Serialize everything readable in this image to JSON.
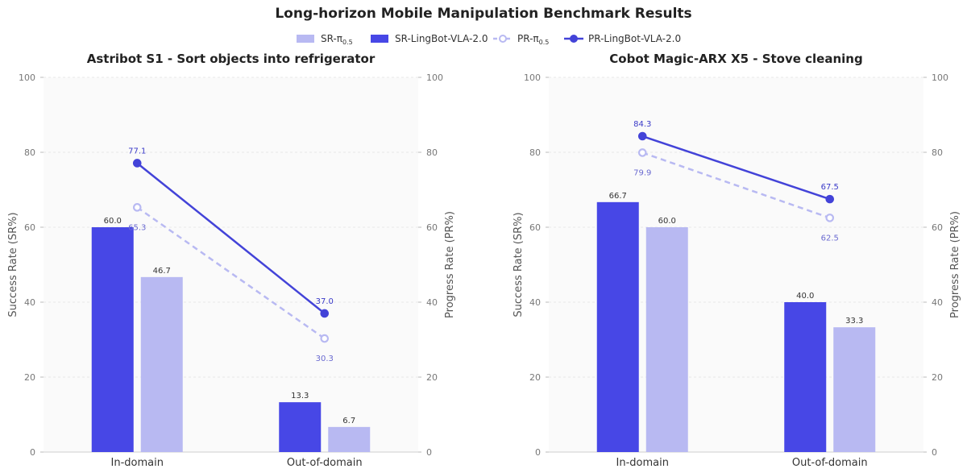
{
  "title": "Long-horizon Mobile Manipulation Benchmark Results",
  "colors": {
    "sr_pi": "#b8b9f2",
    "sr_lingbot": "#4747e6",
    "pr_pi": "#b8b9f2",
    "pr_lingbot": "#4343d8",
    "pr_pi_label": "#6a6ad0",
    "pr_lingbot_label": "#3a3ac8"
  },
  "legend": [
    {
      "key": "sr_pi",
      "label": "SR-π",
      "sub": "0.5",
      "kind": "bar"
    },
    {
      "key": "sr_lingbot",
      "label": "SR-LingBot-VLA-2.0",
      "sub": "",
      "kind": "bar"
    },
    {
      "key": "pr_pi",
      "label": "PR-π",
      "sub": "0.5",
      "kind": "line-dashed"
    },
    {
      "key": "pr_lingbot",
      "label": "PR-LingBot-VLA-2.0",
      "sub": "",
      "kind": "line"
    }
  ],
  "chart_data": [
    {
      "type": "bar",
      "title": "Astribot S1 - Sort objects into refrigerator",
      "categories": [
        "In-domain",
        "Out-of-domain"
      ],
      "ylabel": "Success Rate (SR%)",
      "y2label": "Progress Rate (PR%)",
      "ylim": [
        0,
        100
      ],
      "y2lim": [
        0,
        100
      ],
      "yticks": [
        0,
        20,
        40,
        60,
        80,
        100
      ],
      "grid": true,
      "series": [
        {
          "name": "SR-LingBot-VLA-2.0",
          "kind": "bar",
          "values": [
            60.0,
            13.3
          ],
          "labels": [
            "60.0",
            "13.3"
          ]
        },
        {
          "name": "SR-π0.5",
          "kind": "bar",
          "values": [
            46.7,
            6.7
          ],
          "labels": [
            "46.7",
            "6.7"
          ]
        },
        {
          "name": "PR-LingBot-VLA-2.0",
          "kind": "line",
          "axis": "right",
          "values": [
            77.1,
            37.0
          ],
          "labels": [
            "77.1",
            "37.0"
          ]
        },
        {
          "name": "PR-π0.5",
          "kind": "line-dashed",
          "axis": "right",
          "values": [
            65.3,
            30.3
          ],
          "labels": [
            "65.3",
            "30.3"
          ]
        }
      ]
    },
    {
      "type": "bar",
      "title": "Cobot Magic-ARX X5 - Stove cleaning",
      "categories": [
        "In-domain",
        "Out-of-domain"
      ],
      "ylabel": "Success Rate (SR%)",
      "y2label": "Progress Rate (PR%)",
      "ylim": [
        0,
        100
      ],
      "y2lim": [
        0,
        100
      ],
      "yticks": [
        0,
        20,
        40,
        60,
        80,
        100
      ],
      "grid": true,
      "series": [
        {
          "name": "SR-LingBot-VLA-2.0",
          "kind": "bar",
          "values": [
            66.7,
            40.0
          ],
          "labels": [
            "66.7",
            "40.0"
          ]
        },
        {
          "name": "SR-π0.5",
          "kind": "bar",
          "values": [
            60.0,
            33.3
          ],
          "labels": [
            "60.0",
            "33.3"
          ]
        },
        {
          "name": "PR-LingBot-VLA-2.0",
          "kind": "line",
          "axis": "right",
          "values": [
            84.3,
            67.5
          ],
          "labels": [
            "84.3",
            "67.5"
          ]
        },
        {
          "name": "PR-π0.5",
          "kind": "line-dashed",
          "axis": "right",
          "values": [
            79.9,
            62.5
          ],
          "labels": [
            "79.9",
            "62.5"
          ]
        }
      ]
    }
  ]
}
